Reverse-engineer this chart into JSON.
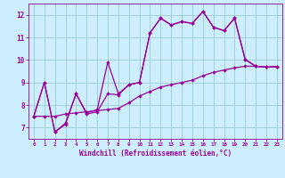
{
  "xlabel": "Windchill (Refroidissement éolien,°C)",
  "bg_color": "#cceeff",
  "line_color": "#990099",
  "grid_color": "#99cccc",
  "xlim": [
    -0.5,
    23.5
  ],
  "ylim": [
    6.5,
    12.5
  ],
  "yticks": [
    7,
    8,
    9,
    10,
    11,
    12
  ],
  "xticks": [
    0,
    1,
    2,
    3,
    4,
    5,
    6,
    7,
    8,
    9,
    10,
    11,
    12,
    13,
    14,
    15,
    16,
    17,
    18,
    19,
    20,
    21,
    22,
    23
  ],
  "line1_x": [
    0,
    1,
    2,
    3,
    4,
    5,
    6,
    7,
    8,
    9,
    10,
    11,
    12,
    13,
    14,
    15,
    16,
    17,
    18,
    19,
    20,
    21,
    22,
    23
  ],
  "line1_y": [
    7.5,
    9.0,
    6.8,
    7.15,
    8.5,
    7.6,
    7.7,
    8.5,
    8.45,
    8.9,
    9.0,
    11.2,
    11.85,
    11.55,
    11.7,
    11.62,
    12.15,
    11.45,
    11.3,
    11.85,
    10.02,
    9.72,
    9.68,
    9.7
  ],
  "line2_x": [
    0,
    1,
    2,
    3,
    4,
    5,
    6,
    7,
    8,
    9,
    10,
    11,
    12,
    13,
    14,
    15,
    16,
    17,
    18,
    19,
    20,
    21,
    22,
    23
  ],
  "line2_y": [
    7.5,
    7.5,
    7.5,
    7.6,
    7.65,
    7.7,
    7.75,
    7.8,
    7.85,
    8.1,
    8.4,
    8.6,
    8.8,
    8.9,
    9.0,
    9.1,
    9.3,
    9.45,
    9.55,
    9.65,
    9.72,
    9.72,
    9.68,
    9.7
  ],
  "line3_x": [
    0,
    1,
    2,
    3,
    4,
    5,
    6,
    7,
    8,
    9,
    10,
    11,
    12,
    13,
    14,
    15,
    16,
    17,
    18,
    19,
    20,
    21,
    22,
    23
  ],
  "line3_y": [
    7.5,
    9.0,
    6.8,
    7.2,
    8.5,
    7.65,
    7.8,
    9.9,
    8.5,
    8.9,
    9.0,
    11.2,
    11.85,
    11.55,
    11.7,
    11.62,
    12.15,
    11.45,
    11.3,
    11.85,
    10.02,
    9.72,
    9.68,
    9.7
  ]
}
